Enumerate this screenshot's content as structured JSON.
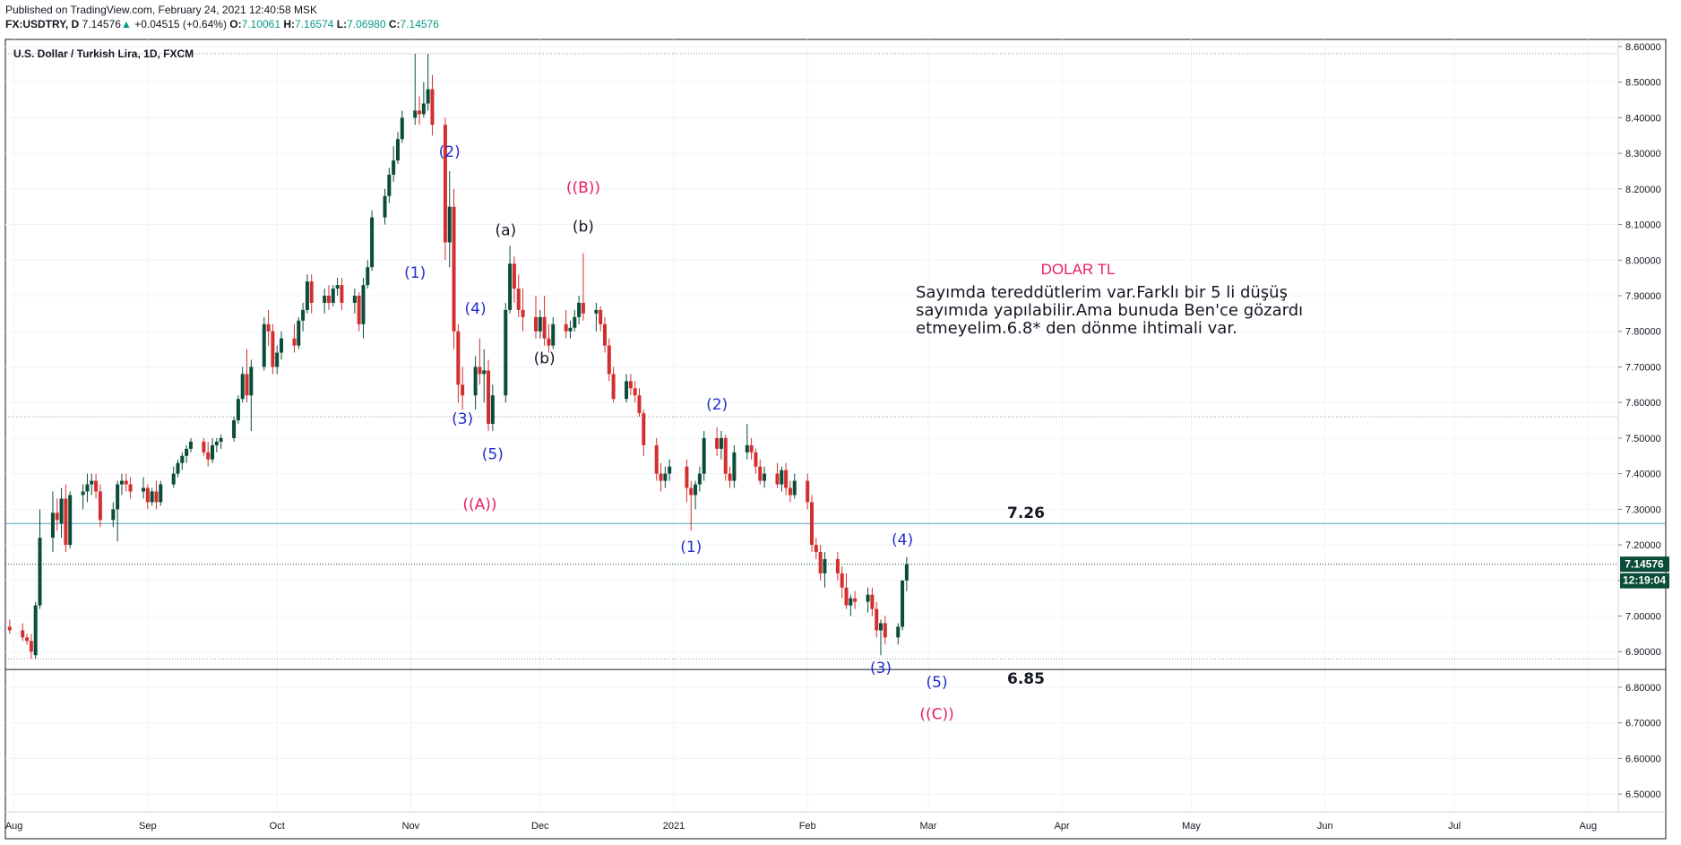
{
  "header": {
    "published": "Published on TradingView.com, February 24, 2021 12:40:58 MSK",
    "symbol_line": "FX:USDTRY, D",
    "last_price": "7.14576",
    "change_arrow": "▲",
    "change": "+0.04515 (+0.64%)",
    "open_label": "O:",
    "open": "7.10061",
    "high_label": "H:",
    "high": "7.16574",
    "low_label": "L:",
    "low": "7.06980",
    "close_label": "C:",
    "close": "7.14576"
  },
  "chart_data": {
    "type": "candlestick",
    "title": "U.S. Dollar / Turkish Lira, 1D, FXCM",
    "x_range": [
      "2020-07-30",
      "2021-08-08"
    ],
    "ylim": [
      6.45,
      8.62
    ],
    "y_ticks": [
      6.5,
      6.6,
      6.7,
      6.8,
      6.9,
      7.0,
      7.1,
      7.2,
      7.3,
      7.4,
      7.5,
      7.6,
      7.7,
      7.8,
      7.9,
      8.0,
      8.1,
      8.2,
      8.3,
      8.4,
      8.5,
      8.6
    ],
    "y_tick_labels": [
      "6.50000",
      "6.60000",
      "6.70000",
      "6.80000",
      "6.90000",
      "7.00000",
      "7.10000",
      "7.20000",
      "7.30000",
      "7.40000",
      "7.50000",
      "7.60000",
      "7.70000",
      "7.80000",
      "7.90000",
      "8.00000",
      "8.10000",
      "8.20000",
      "8.30000",
      "8.40000",
      "8.50000",
      "8.60000"
    ],
    "x_ticks": [
      {
        "date": "2020-08-01",
        "label": "Aug"
      },
      {
        "date": "2020-09-01",
        "label": "Sep"
      },
      {
        "date": "2020-10-01",
        "label": "Oct"
      },
      {
        "date": "2020-11-01",
        "label": "Nov"
      },
      {
        "date": "2020-12-01",
        "label": "Dec"
      },
      {
        "date": "2021-01-01",
        "label": "2021"
      },
      {
        "date": "2021-02-01",
        "label": "Feb"
      },
      {
        "date": "2021-03-01",
        "label": "Mar"
      },
      {
        "date": "2021-04-01",
        "label": "Apr"
      },
      {
        "date": "2021-05-01",
        "label": "May"
      },
      {
        "date": "2021-06-01",
        "label": "Jun"
      },
      {
        "date": "2021-07-01",
        "label": "Jul"
      },
      {
        "date": "2021-08-01",
        "label": "Aug"
      }
    ],
    "candles": [
      [
        "2020-07-31",
        6.97,
        6.99,
        6.95,
        6.96
      ],
      [
        "2020-08-03",
        6.96,
        6.98,
        6.93,
        6.94
      ],
      [
        "2020-08-04",
        6.94,
        6.95,
        6.92,
        6.93
      ],
      [
        "2020-08-05",
        6.93,
        6.95,
        6.88,
        6.9
      ],
      [
        "2020-08-06",
        6.89,
        7.04,
        6.88,
        7.03
      ],
      [
        "2020-08-07",
        7.03,
        7.3,
        7.02,
        7.22
      ],
      [
        "2020-08-10",
        7.22,
        7.35,
        7.18,
        7.29
      ],
      [
        "2020-08-11",
        7.29,
        7.33,
        7.24,
        7.27
      ],
      [
        "2020-08-12",
        7.26,
        7.36,
        7.22,
        7.33
      ],
      [
        "2020-08-13",
        7.33,
        7.37,
        7.18,
        7.2
      ],
      [
        "2020-08-14",
        7.2,
        7.35,
        7.19,
        7.34
      ],
      [
        "2020-08-17",
        7.34,
        7.37,
        7.3,
        7.35
      ],
      [
        "2020-08-18",
        7.35,
        7.4,
        7.32,
        7.37
      ],
      [
        "2020-08-19",
        7.37,
        7.4,
        7.34,
        7.38
      ],
      [
        "2020-08-20",
        7.38,
        7.4,
        7.33,
        7.35
      ],
      [
        "2020-08-21",
        7.35,
        7.37,
        7.25,
        7.27
      ],
      [
        "2020-08-24",
        7.27,
        7.32,
        7.25,
        7.3
      ],
      [
        "2020-08-25",
        7.3,
        7.38,
        7.21,
        7.37
      ],
      [
        "2020-08-26",
        7.37,
        7.4,
        7.34,
        7.38
      ],
      [
        "2020-08-27",
        7.38,
        7.4,
        7.35,
        7.37
      ],
      [
        "2020-08-28",
        7.37,
        7.39,
        7.33,
        7.35
      ],
      [
        "2020-08-31",
        7.35,
        7.39,
        7.33,
        7.36
      ],
      [
        "2020-09-01",
        7.36,
        7.37,
        7.3,
        7.32
      ],
      [
        "2020-09-02",
        7.32,
        7.36,
        7.31,
        7.35
      ],
      [
        "2020-09-03",
        7.35,
        7.38,
        7.3,
        7.32
      ],
      [
        "2020-09-04",
        7.32,
        7.38,
        7.31,
        7.37
      ],
      [
        "2020-09-07",
        7.37,
        7.42,
        7.36,
        7.4
      ],
      [
        "2020-09-08",
        7.4,
        7.44,
        7.39,
        7.43
      ],
      [
        "2020-09-09",
        7.43,
        7.46,
        7.41,
        7.45
      ],
      [
        "2020-09-10",
        7.45,
        7.48,
        7.43,
        7.47
      ],
      [
        "2020-09-11",
        7.47,
        7.5,
        7.46,
        7.49
      ],
      [
        "2020-09-14",
        7.49,
        7.5,
        7.45,
        7.46
      ],
      [
        "2020-09-15",
        7.46,
        7.49,
        7.42,
        7.44
      ],
      [
        "2020-09-16",
        7.44,
        7.5,
        7.43,
        7.48
      ],
      [
        "2020-09-17",
        7.48,
        7.5,
        7.46,
        7.49
      ],
      [
        "2020-09-18",
        7.49,
        7.51,
        7.47,
        7.5
      ],
      [
        "2020-09-21",
        7.5,
        7.56,
        7.49,
        7.55
      ],
      [
        "2020-09-22",
        7.55,
        7.62,
        7.54,
        7.61
      ],
      [
        "2020-09-23",
        7.61,
        7.7,
        7.6,
        7.68
      ],
      [
        "2020-09-24",
        7.68,
        7.75,
        7.6,
        7.62
      ],
      [
        "2020-09-25",
        7.62,
        7.72,
        7.52,
        7.7
      ],
      [
        "2020-09-28",
        7.7,
        7.84,
        7.69,
        7.82
      ],
      [
        "2020-09-29",
        7.82,
        7.86,
        7.76,
        7.8
      ],
      [
        "2020-09-30",
        7.8,
        7.82,
        7.68,
        7.7
      ],
      [
        "2020-10-01",
        7.7,
        7.76,
        7.68,
        7.74
      ],
      [
        "2020-10-02",
        7.74,
        7.8,
        7.72,
        7.78
      ],
      [
        "2020-10-05",
        7.78,
        7.82,
        7.74,
        7.76
      ],
      [
        "2020-10-06",
        7.76,
        7.84,
        7.75,
        7.83
      ],
      [
        "2020-10-07",
        7.83,
        7.88,
        7.8,
        7.86
      ],
      [
        "2020-10-08",
        7.86,
        7.96,
        7.85,
        7.94
      ],
      [
        "2020-10-09",
        7.94,
        7.96,
        7.85,
        7.88
      ],
      [
        "2020-10-12",
        7.88,
        7.92,
        7.85,
        7.9
      ],
      [
        "2020-10-13",
        7.9,
        7.93,
        7.86,
        7.88
      ],
      [
        "2020-10-14",
        7.88,
        7.93,
        7.87,
        7.92
      ],
      [
        "2020-10-15",
        7.92,
        7.95,
        7.9,
        7.93
      ],
      [
        "2020-10-16",
        7.93,
        7.95,
        7.86,
        7.88
      ],
      [
        "2020-10-19",
        7.88,
        7.92,
        7.85,
        7.9
      ],
      [
        "2020-10-20",
        7.9,
        7.91,
        7.8,
        7.82
      ],
      [
        "2020-10-21",
        7.82,
        7.95,
        7.78,
        7.93
      ],
      [
        "2020-10-22",
        7.93,
        8.0,
        7.92,
        7.98
      ],
      [
        "2020-10-23",
        7.98,
        8.14,
        7.97,
        8.12
      ],
      [
        "2020-10-26",
        8.12,
        8.2,
        8.1,
        8.18
      ],
      [
        "2020-10-27",
        8.18,
        8.26,
        8.16,
        8.24
      ],
      [
        "2020-10-28",
        8.24,
        8.32,
        8.22,
        8.28
      ],
      [
        "2020-10-29",
        8.28,
        8.36,
        8.27,
        8.34
      ],
      [
        "2020-10-30",
        8.34,
        8.42,
        8.33,
        8.4
      ],
      [
        "2020-11-02",
        8.4,
        8.58,
        8.38,
        8.42
      ],
      [
        "2020-11-03",
        8.42,
        8.46,
        8.38,
        8.41
      ],
      [
        "2020-11-04",
        8.41,
        8.5,
        8.4,
        8.44
      ],
      [
        "2020-11-05",
        8.44,
        8.58,
        8.42,
        8.48
      ],
      [
        "2020-11-06",
        8.48,
        8.52,
        8.35,
        8.38
      ],
      [
        "2020-11-09",
        8.38,
        8.4,
        8.0,
        8.05
      ],
      [
        "2020-11-10",
        8.05,
        8.25,
        7.98,
        8.15
      ],
      [
        "2020-11-11",
        8.15,
        8.2,
        7.75,
        7.8
      ],
      [
        "2020-11-12",
        7.8,
        7.82,
        7.6,
        7.65
      ],
      [
        "2020-11-13",
        7.65,
        7.7,
        7.58,
        7.62
      ],
      [
        "2020-11-16",
        7.62,
        7.73,
        7.58,
        7.7
      ],
      [
        "2020-11-17",
        7.7,
        7.78,
        7.65,
        7.68
      ],
      [
        "2020-11-18",
        7.68,
        7.75,
        7.6,
        7.69
      ],
      [
        "2020-11-19",
        7.69,
        7.72,
        7.52,
        7.54
      ],
      [
        "2020-11-20",
        7.54,
        7.65,
        7.52,
        7.62
      ],
      [
        "2020-11-23",
        7.62,
        7.88,
        7.6,
        7.86
      ],
      [
        "2020-11-24",
        7.86,
        8.04,
        7.85,
        7.99
      ],
      [
        "2020-11-25",
        7.99,
        8.01,
        7.88,
        7.92
      ],
      [
        "2020-11-26",
        7.92,
        7.96,
        7.84,
        7.86
      ],
      [
        "2020-11-27",
        7.86,
        7.92,
        7.8,
        7.84
      ],
      [
        "2020-11-30",
        7.84,
        7.9,
        7.78,
        7.8
      ],
      [
        "2020-12-01",
        7.8,
        7.86,
        7.78,
        7.84
      ],
      [
        "2020-12-02",
        7.84,
        7.9,
        7.76,
        7.78
      ],
      [
        "2020-12-03",
        7.78,
        7.82,
        7.74,
        7.76
      ],
      [
        "2020-12-04",
        7.76,
        7.84,
        7.75,
        7.82
      ],
      [
        "2020-12-07",
        7.82,
        7.86,
        7.78,
        7.8
      ],
      [
        "2020-12-08",
        7.8,
        7.83,
        7.78,
        7.81
      ],
      [
        "2020-12-09",
        7.81,
        7.86,
        7.8,
        7.84
      ],
      [
        "2020-12-10",
        7.84,
        7.9,
        7.82,
        7.88
      ],
      [
        "2020-12-11",
        7.88,
        8.02,
        7.83,
        7.85
      ],
      [
        "2020-12-14",
        7.85,
        7.88,
        7.8,
        7.86
      ],
      [
        "2020-12-15",
        7.86,
        7.87,
        7.8,
        7.82
      ],
      [
        "2020-12-16",
        7.82,
        7.84,
        7.74,
        7.76
      ],
      [
        "2020-12-17",
        7.76,
        7.78,
        7.66,
        7.68
      ],
      [
        "2020-12-18",
        7.68,
        7.7,
        7.6,
        7.61
      ],
      [
        "2020-12-21",
        7.61,
        7.68,
        7.6,
        7.66
      ],
      [
        "2020-12-22",
        7.66,
        7.68,
        7.62,
        7.64
      ],
      [
        "2020-12-23",
        7.64,
        7.66,
        7.6,
        7.62
      ],
      [
        "2020-12-24",
        7.62,
        7.64,
        7.56,
        7.57
      ],
      [
        "2020-12-25",
        7.57,
        7.58,
        7.45,
        7.48
      ],
      [
        "2020-12-28",
        7.48,
        7.5,
        7.38,
        7.4
      ],
      [
        "2020-12-29",
        7.4,
        7.43,
        7.35,
        7.38
      ],
      [
        "2020-12-30",
        7.38,
        7.42,
        7.36,
        7.4
      ],
      [
        "2020-12-31",
        7.4,
        7.44,
        7.38,
        7.42
      ],
      [
        "2021-01-04",
        7.42,
        7.44,
        7.32,
        7.36
      ],
      [
        "2021-01-05",
        7.36,
        7.38,
        7.24,
        7.34
      ],
      [
        "2021-01-06",
        7.34,
        7.38,
        7.3,
        7.37
      ],
      [
        "2021-01-07",
        7.37,
        7.42,
        7.35,
        7.4
      ],
      [
        "2021-01-08",
        7.4,
        7.52,
        7.38,
        7.5
      ],
      [
        "2021-01-11",
        7.5,
        7.53,
        7.45,
        7.47
      ],
      [
        "2021-01-12",
        7.47,
        7.52,
        7.44,
        7.5
      ],
      [
        "2021-01-13",
        7.5,
        7.51,
        7.38,
        7.4
      ],
      [
        "2021-01-14",
        7.4,
        7.42,
        7.36,
        7.38
      ],
      [
        "2021-01-15",
        7.38,
        7.48,
        7.36,
        7.46
      ],
      [
        "2021-01-18",
        7.46,
        7.54,
        7.44,
        7.48
      ],
      [
        "2021-01-19",
        7.48,
        7.5,
        7.44,
        7.46
      ],
      [
        "2021-01-20",
        7.46,
        7.47,
        7.4,
        7.42
      ],
      [
        "2021-01-21",
        7.42,
        7.44,
        7.37,
        7.38
      ],
      [
        "2021-01-22",
        7.38,
        7.42,
        7.36,
        7.4
      ],
      [
        "2021-01-25",
        7.4,
        7.43,
        7.36,
        7.37
      ],
      [
        "2021-01-26",
        7.37,
        7.42,
        7.35,
        7.41
      ],
      [
        "2021-01-27",
        7.41,
        7.43,
        7.34,
        7.36
      ],
      [
        "2021-01-28",
        7.36,
        7.38,
        7.32,
        7.34
      ],
      [
        "2021-01-29",
        7.34,
        7.4,
        7.33,
        7.38
      ],
      [
        "2021-02-01",
        7.38,
        7.4,
        7.3,
        7.32
      ],
      [
        "2021-02-02",
        7.32,
        7.34,
        7.18,
        7.2
      ],
      [
        "2021-02-03",
        7.2,
        7.22,
        7.16,
        7.18
      ],
      [
        "2021-02-04",
        7.18,
        7.2,
        7.1,
        7.12
      ],
      [
        "2021-02-05",
        7.12,
        7.18,
        7.08,
        7.16
      ],
      [
        "2021-02-08",
        7.16,
        7.18,
        7.1,
        7.12
      ],
      [
        "2021-02-09",
        7.12,
        7.14,
        7.05,
        7.08
      ],
      [
        "2021-02-10",
        7.08,
        7.12,
        7.02,
        7.03
      ],
      [
        "2021-02-11",
        7.03,
        7.06,
        7.0,
        7.05
      ],
      [
        "2021-02-12",
        7.05,
        7.07,
        7.02,
        7.04
      ],
      [
        "2021-02-15",
        7.04,
        7.08,
        7.01,
        7.06
      ],
      [
        "2021-02-16",
        7.06,
        7.08,
        7.0,
        7.02
      ],
      [
        "2021-02-17",
        7.02,
        7.04,
        6.94,
        6.96
      ],
      [
        "2021-02-18",
        6.96,
        6.99,
        6.89,
        6.98
      ],
      [
        "2021-02-19",
        6.98,
        7.0,
        6.92,
        6.94
      ],
      [
        "2021-02-22",
        6.94,
        6.98,
        6.92,
        6.97
      ],
      [
        "2021-02-23",
        6.97,
        7.1,
        6.96,
        7.1
      ],
      [
        "2021-02-24",
        7.1,
        7.16574,
        7.0698,
        7.14576
      ]
    ],
    "levels": [
      {
        "label": "7.26",
        "value": 7.26
      },
      {
        "label": "6.85",
        "value": 6.85
      }
    ],
    "wave_labels": [
      {
        "text": "(1)",
        "date": "2020-11-02",
        "price": 7.95,
        "color": "#1f2ecf"
      },
      {
        "text": "(2)",
        "date": "2020-11-10",
        "price": 8.29,
        "color": "#1f2ecf"
      },
      {
        "text": "(3)",
        "date": "2020-11-13",
        "price": 7.54,
        "color": "#1f2ecf"
      },
      {
        "text": "(4)",
        "date": "2020-11-16",
        "price": 7.85,
        "color": "#1f2ecf"
      },
      {
        "text": "(5)",
        "date": "2020-11-20",
        "price": 7.44,
        "color": "#1f2ecf"
      },
      {
        "text": "((A))",
        "date": "2020-11-17",
        "price": 7.3,
        "color": "#e91e63"
      },
      {
        "text": "(a)",
        "date": "2020-11-23",
        "price": 8.07,
        "color": "#131722"
      },
      {
        "text": "(b)",
        "date": "2020-12-02",
        "price": 7.71,
        "color": "#131722"
      },
      {
        "text": "(b)",
        "date": "2020-12-11",
        "price": 8.08,
        "color": "#131722"
      },
      {
        "text": "((B))",
        "date": "2020-12-11",
        "price": 8.19,
        "color": "#e91e63"
      },
      {
        "text": "(2)",
        "date": "2021-01-11",
        "price": 7.58,
        "color": "#1f2ecf"
      },
      {
        "text": "(1)",
        "date": "2021-01-05",
        "price": 7.18,
        "color": "#1f2ecf"
      },
      {
        "text": "(4)",
        "date": "2021-02-23",
        "price": 7.2,
        "color": "#1f2ecf"
      },
      {
        "text": "(3)",
        "date": "2021-02-18",
        "price": 6.84,
        "color": "#1f2ecf"
      },
      {
        "text": "(5)",
        "date": "2021-03-03",
        "price": 6.8,
        "color": "#1f2ecf"
      },
      {
        "text": "((C))",
        "date": "2021-03-03",
        "price": 6.71,
        "color": "#e91e63"
      }
    ],
    "note": {
      "title": "DOLAR TL",
      "lines": [
        "Sayımda tereddütlerim var.Farklı bir 5 li düşüş",
        "sayımıda yapılabilir.Ama bunuda Ben'ce gözardı",
        "etmeyelim.6.8* den dönme ihtimali var."
      ]
    },
    "price_badge": {
      "value": "7.14576",
      "price": 7.14576
    },
    "countdown_badge": {
      "value": "12:19:04"
    },
    "grid": true,
    "colors": {
      "up": "#0b4d3a",
      "down": "#d32f2f",
      "level_7_26": "#4b9fb8",
      "level_6_85": "#131722",
      "badge": "#0b4d3a"
    }
  }
}
